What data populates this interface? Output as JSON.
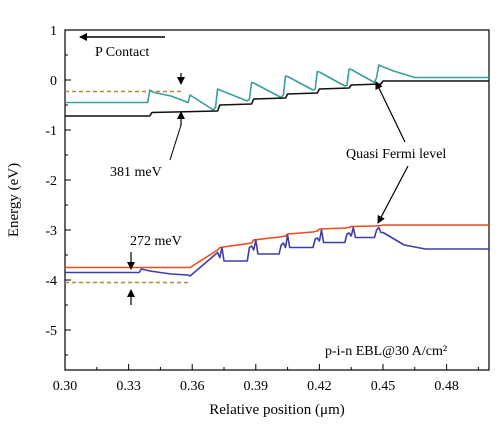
{
  "chart_data": {
    "type": "line",
    "title": "",
    "xlabel": "Relative position (μm)",
    "ylabel": "Energy (eV)",
    "xlim": [
      0.3,
      0.5
    ],
    "ylim": [
      -5.8,
      1.0
    ],
    "xticks": [
      "0.30",
      "0.33",
      "0.36",
      "0.39",
      "0.42",
      "0.45",
      "0.48"
    ],
    "xtick_values": [
      0.3,
      0.33,
      0.36,
      0.39,
      0.42,
      0.45,
      0.48
    ],
    "yticks": [
      "1",
      "0",
      "-1",
      "-2",
      "-3",
      "-4",
      "-5"
    ],
    "ytick_values": [
      1,
      0,
      -1,
      -2,
      -3,
      -4,
      -5
    ],
    "grid": false,
    "colors": {
      "teal": "#3a9e9a",
      "black": "#111111",
      "red": "#ee4a1e",
      "blue": "#3c3fa8",
      "dashed": "#b08a3a",
      "axis": "#000000"
    },
    "series": [
      {
        "color_key": "teal",
        "x": [
          0.3,
          0.339,
          0.34,
          0.342,
          0.35,
          0.358,
          0.359,
          0.37,
          0.371,
          0.372,
          0.373,
          0.386,
          0.387,
          0.388,
          0.389,
          0.402,
          0.403,
          0.404,
          0.405,
          0.417,
          0.418,
          0.419,
          0.42,
          0.432,
          0.433,
          0.434,
          0.435,
          0.446,
          0.447,
          0.448,
          0.449,
          0.455,
          0.465,
          0.5
        ],
        "y": [
          -0.45,
          -0.45,
          -0.2,
          -0.25,
          -0.32,
          -0.45,
          -0.3,
          -0.6,
          -0.55,
          -0.18,
          -0.2,
          -0.42,
          -0.38,
          -0.05,
          -0.06,
          -0.35,
          -0.3,
          0.08,
          0.07,
          -0.2,
          -0.18,
          0.17,
          0.16,
          -0.12,
          -0.1,
          0.22,
          0.21,
          -0.05,
          0.05,
          0.3,
          0.28,
          0.18,
          0.05,
          0.05
        ]
      },
      {
        "color_key": "black",
        "x": [
          0.3,
          0.34,
          0.341,
          0.372,
          0.373,
          0.388,
          0.389,
          0.404,
          0.405,
          0.419,
          0.42,
          0.434,
          0.435,
          0.449,
          0.45,
          0.5
        ],
        "y": [
          -0.72,
          -0.72,
          -0.65,
          -0.62,
          -0.5,
          -0.48,
          -0.38,
          -0.36,
          -0.28,
          -0.26,
          -0.18,
          -0.16,
          -0.1,
          -0.08,
          -0.02,
          -0.02
        ]
      },
      {
        "color_key": "red",
        "x": [
          0.3,
          0.359,
          0.372,
          0.373,
          0.385,
          0.388,
          0.389,
          0.401,
          0.404,
          0.405,
          0.417,
          0.419,
          0.42,
          0.432,
          0.434,
          0.435,
          0.446,
          0.449,
          0.45,
          0.5
        ],
        "y": [
          -3.75,
          -3.75,
          -3.4,
          -3.35,
          -3.28,
          -3.26,
          -3.2,
          -3.14,
          -3.12,
          -3.08,
          -3.04,
          -3.02,
          -2.98,
          -2.96,
          -2.95,
          -2.93,
          -2.92,
          -2.91,
          -2.9,
          -2.9
        ]
      },
      {
        "color_key": "blue",
        "x": [
          0.3,
          0.335,
          0.336,
          0.34,
          0.35,
          0.358,
          0.359,
          0.372,
          0.373,
          0.374,
          0.375,
          0.386,
          0.387,
          0.388,
          0.389,
          0.39,
          0.391,
          0.401,
          0.402,
          0.403,
          0.404,
          0.405,
          0.406,
          0.417,
          0.418,
          0.419,
          0.42,
          0.421,
          0.422,
          0.432,
          0.433,
          0.434,
          0.435,
          0.436,
          0.437,
          0.446,
          0.447,
          0.448,
          0.449,
          0.45,
          0.46,
          0.47,
          0.5
        ],
        "y": [
          -3.85,
          -3.85,
          -3.78,
          -3.82,
          -3.88,
          -3.9,
          -3.92,
          -3.45,
          -3.55,
          -3.35,
          -3.62,
          -3.62,
          -3.35,
          -3.32,
          -3.4,
          -3.2,
          -3.48,
          -3.48,
          -3.3,
          -3.26,
          -3.35,
          -3.1,
          -3.35,
          -3.35,
          -3.18,
          -3.16,
          -3.22,
          -3.0,
          -3.25,
          -3.25,
          -3.08,
          -3.06,
          -3.12,
          -2.95,
          -3.15,
          -3.15,
          -3.0,
          -2.95,
          -3.05,
          -3.05,
          -3.3,
          -3.38,
          -3.38
        ]
      }
    ],
    "dashed_lines": [
      {
        "x": [
          0.3,
          0.356
        ],
        "y": -0.23
      },
      {
        "x": [
          0.3,
          0.358
        ],
        "y": -4.05
      }
    ],
    "annotations": {
      "p_contact": "P Contact",
      "mev_381": "381 meV",
      "mev_272": "272 meV",
      "quasi_fermi": "Quasi Fermi level",
      "condition": "p-i-n EBL@30 A/cm²"
    }
  }
}
